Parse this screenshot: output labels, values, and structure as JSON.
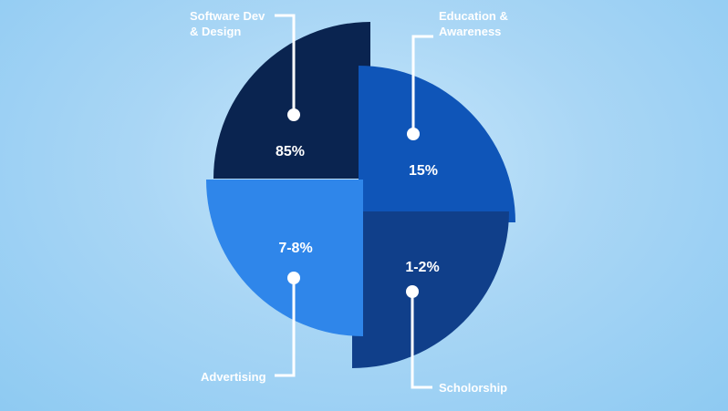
{
  "chart_data": {
    "type": "pie",
    "title": "",
    "slices": [
      {
        "name": "Software Dev & Design",
        "label_lines": [
          "Software Dev",
          "& Design"
        ],
        "value_label": "85%",
        "color": "#0a2450"
      },
      {
        "name": "Education & Awareness",
        "label_lines": [
          "Education &",
          "Awareness"
        ],
        "value_label": "15%",
        "color": "#0f55b8"
      },
      {
        "name": "Scholorship",
        "label_lines": [
          "Scholorship"
        ],
        "value_label": "1-2%",
        "color": "#103f8a"
      },
      {
        "name": "Advertising",
        "label_lines": [
          "Advertising"
        ],
        "value_label": "7-8%",
        "color": "#2f86ea"
      }
    ]
  }
}
